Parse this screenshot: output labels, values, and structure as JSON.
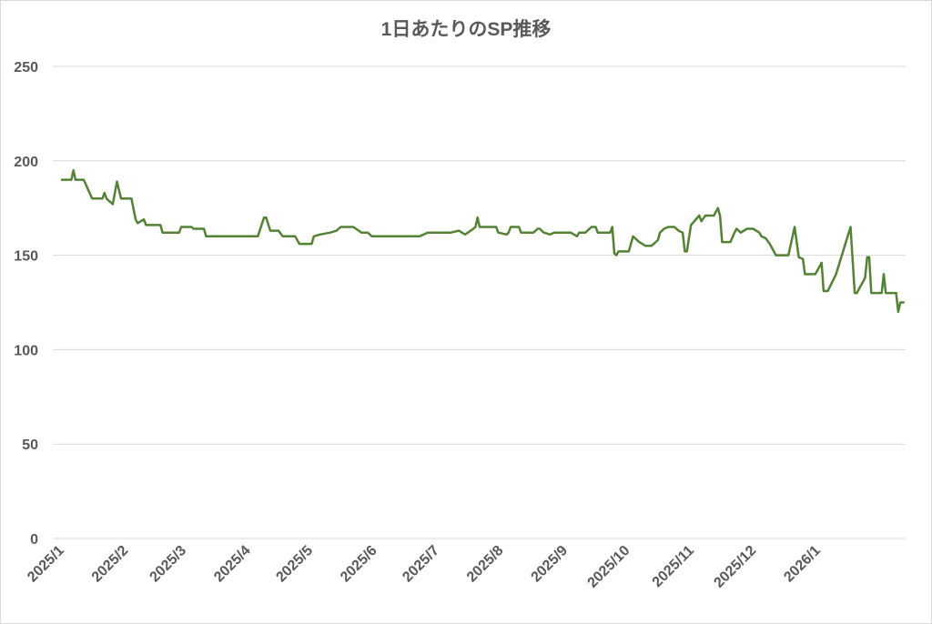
{
  "chart_data": {
    "type": "line",
    "title": "1日あたりのSP推移",
    "xlabel": "",
    "ylabel": "",
    "ylim": [
      0,
      250
    ],
    "yticks": [
      0,
      50,
      100,
      150,
      200,
      250
    ],
    "xticks": [
      "2025/1",
      "2025/2",
      "2025/3",
      "2025/4",
      "2025/5",
      "2025/6",
      "2025/7",
      "2025/8",
      "2025/9",
      "2025/10",
      "2025/11",
      "2025/12",
      "2026/1"
    ],
    "grid": true,
    "legend": "none",
    "line_color": "#548235",
    "grid_color": "#d9d9d9",
    "text_color": "#595959",
    "series": [
      {
        "x": [
          "2025-01-01",
          "2025-01-06",
          "2025-01-07",
          "2025-01-08",
          "2025-01-12",
          "2025-01-16",
          "2025-01-21",
          "2025-01-22",
          "2025-01-23",
          "2025-01-26",
          "2025-01-28",
          "2025-01-30",
          "2025-02-04",
          "2025-02-06",
          "2025-02-07",
          "2025-02-10",
          "2025-02-11",
          "2025-02-18",
          "2025-02-19",
          "2025-02-27",
          "2025-02-28",
          "2025-03-05",
          "2025-03-06",
          "2025-03-11",
          "2025-03-12",
          "2025-04-06",
          "2025-04-09",
          "2025-04-10",
          "2025-04-12",
          "2025-04-16",
          "2025-04-18",
          "2025-04-24",
          "2025-04-26",
          "2025-05-02",
          "2025-05-03",
          "2025-05-06",
          "2025-05-11",
          "2025-05-14",
          "2025-05-16",
          "2025-05-22",
          "2025-05-26",
          "2025-05-29",
          "2025-05-31",
          "2025-06-23",
          "2025-06-25",
          "2025-06-27",
          "2025-07-08",
          "2025-07-12",
          "2025-07-15",
          "2025-07-19",
          "2025-07-20",
          "2025-07-21",
          "2025-07-22",
          "2025-07-30",
          "2025-07-31",
          "2025-08-04",
          "2025-08-05",
          "2025-08-06",
          "2025-08-10",
          "2025-08-11",
          "2025-08-17",
          "2025-08-19",
          "2025-08-20",
          "2025-08-22",
          "2025-08-25",
          "2025-08-27",
          "2025-09-04",
          "2025-09-07",
          "2025-09-08",
          "2025-09-11",
          "2025-09-14",
          "2025-09-16",
          "2025-09-17",
          "2025-09-23",
          "2025-09-24",
          "2025-09-25",
          "2025-09-26",
          "2025-09-27",
          "2025-10-02",
          "2025-10-04",
          "2025-10-07",
          "2025-10-10",
          "2025-10-13",
          "2025-10-16",
          "2025-10-17",
          "2025-10-19",
          "2025-10-21",
          "2025-10-24",
          "2025-10-26",
          "2025-10-28",
          "2025-10-29",
          "2025-10-30",
          "2025-11-01",
          "2025-11-05",
          "2025-11-06",
          "2025-11-08",
          "2025-11-12",
          "2025-11-14",
          "2025-11-15",
          "2025-11-16",
          "2025-11-20",
          "2025-11-22",
          "2025-11-23",
          "2025-11-25",
          "2025-11-28",
          "2025-12-01",
          "2025-12-04",
          "2025-12-05",
          "2025-12-07",
          "2025-12-09",
          "2025-12-12",
          "2025-12-18",
          "2025-12-21",
          "2025-12-23",
          "2025-12-25",
          "2025-12-26",
          "2025-12-31",
          "2026-01-03",
          "2026-01-04",
          "2026-01-06",
          "2026-01-10",
          "2026-01-17",
          "2026-01-19",
          "2026-01-20",
          "2026-01-24",
          "2026-01-25",
          "2026-01-26",
          "2026-01-27",
          "2026-02-01",
          "2026-02-02",
          "2026-02-03",
          "2026-02-08",
          "2026-02-09",
          "2026-02-10",
          "2026-02-12"
        ],
        "y": [
          190,
          190,
          195,
          190,
          190,
          180,
          180,
          183,
          180,
          177,
          189,
          180,
          180,
          169,
          167,
          169,
          166,
          166,
          162,
          162,
          165,
          165,
          164,
          164,
          160,
          160,
          170,
          170,
          163,
          163,
          160,
          160,
          156,
          156,
          160,
          161,
          162,
          163,
          165,
          165,
          162,
          162,
          160,
          160,
          161,
          162,
          162,
          163,
          161,
          164,
          165,
          170,
          165,
          165,
          162,
          161,
          162,
          165,
          165,
          162,
          162,
          164,
          164,
          162,
          161,
          162,
          162,
          160,
          162,
          162,
          165,
          165,
          162,
          162,
          165,
          151,
          150,
          152,
          152,
          160,
          157,
          155,
          155,
          158,
          162,
          164,
          165,
          165,
          163,
          162,
          152,
          152,
          166,
          171,
          168,
          171,
          171,
          175,
          171,
          157,
          157,
          162,
          164,
          162,
          164,
          164,
          162,
          160,
          159,
          156,
          150,
          150,
          165,
          149,
          148,
          140,
          140,
          146,
          131,
          131,
          140,
          165,
          130,
          130,
          138,
          149,
          149,
          130,
          130,
          140,
          130,
          130,
          120,
          125,
          125
        ]
      }
    ]
  }
}
